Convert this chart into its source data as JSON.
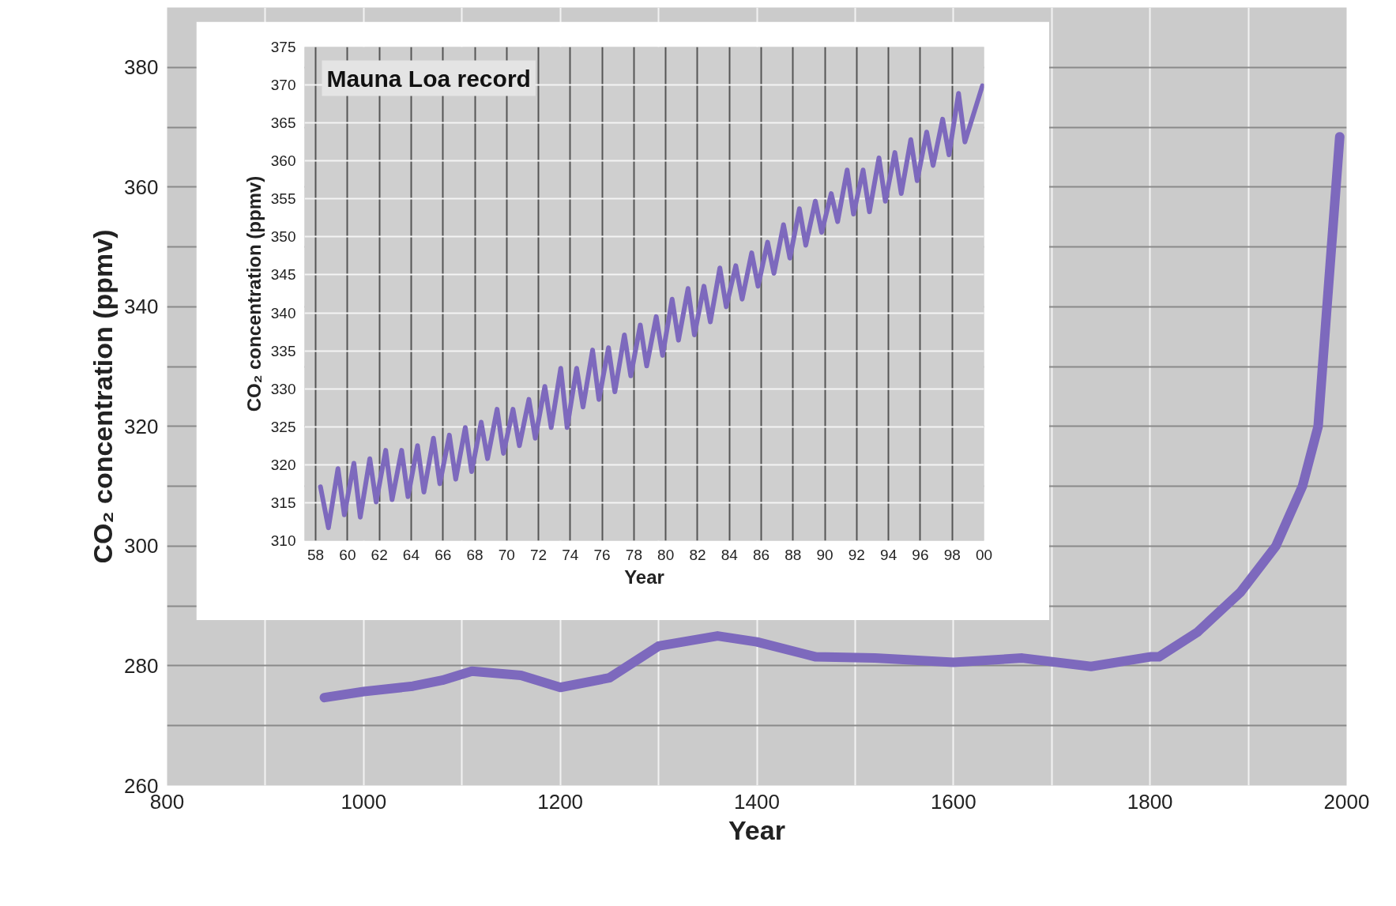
{
  "chart_data": [
    {
      "type": "line",
      "xlabel": "Year",
      "ylabel": "CO₂ concentration (ppmv)",
      "color": "#7d69bd",
      "x": [
        960,
        1000,
        1050,
        1080,
        1110,
        1160,
        1200,
        1250,
        1300,
        1360,
        1400,
        1460,
        1520,
        1600,
        1670,
        1740,
        1800,
        1809,
        1848,
        1892,
        1928,
        1955,
        1971,
        1980,
        1993
      ],
      "values": [
        274.7,
        275.7,
        276.6,
        277.6,
        279.1,
        278.4,
        276.4,
        278,
        283.3,
        285,
        284,
        281.5,
        281.3,
        280.6,
        281.3,
        279.9,
        281.5,
        281.5,
        285.6,
        292.3,
        300,
        310,
        320,
        340,
        368.4
      ],
      "xlim": [
        800,
        2000
      ],
      "ylim": [
        260,
        390
      ],
      "xticks": [
        800,
        {
          "value": 900,
          "label": null
        },
        1000,
        {
          "value": 1100,
          "label": null
        },
        1200,
        {
          "value": 1300,
          "label": null
        },
        1400,
        {
          "value": 1500,
          "label": null
        },
        1600,
        {
          "value": 1700,
          "label": null
        },
        1800,
        {
          "value": 1900,
          "label": null
        },
        2000
      ],
      "yticks": [
        260,
        {
          "value": 270,
          "label": null
        },
        280,
        {
          "value": 290,
          "label": null
        },
        300,
        {
          "value": 310,
          "label": null
        },
        320,
        {
          "value": 330,
          "label": null
        },
        340,
        {
          "value": 350,
          "label": null
        },
        360,
        {
          "value": 370,
          "label": null
        },
        380,
        {
          "value": 390,
          "label": null
        }
      ],
      "grid": true
    },
    {
      "type": "line",
      "title": "Mauna Loa record",
      "xlabel": "Year",
      "ylabel": "CO₂ concentration (ppmv)",
      "color": "#7d69bd",
      "x": [
        1958.3,
        1958.8,
        1959.4,
        1959.8,
        1960.4,
        1960.8,
        1961.4,
        1961.8,
        1962.4,
        1962.8,
        1963.4,
        1963.8,
        1964.4,
        1964.8,
        1965.4,
        1965.8,
        1966.4,
        1966.8,
        1967.4,
        1967.8,
        1968.4,
        1968.8,
        1969.4,
        1969.8,
        1970.4,
        1970.8,
        1971.4,
        1971.8,
        1972.4,
        1972.8,
        1973.4,
        1973.8,
        1974.4,
        1974.8,
        1975.4,
        1975.8,
        1976.4,
        1976.8,
        1977.4,
        1977.8,
        1978.4,
        1978.8,
        1979.4,
        1979.8,
        1980.4,
        1980.8,
        1981.4,
        1981.8,
        1982.4,
        1982.8,
        1983.4,
        1983.8,
        1984.4,
        1984.8,
        1985.4,
        1985.8,
        1986.4,
        1986.8,
        1987.4,
        1987.8,
        1988.4,
        1988.8,
        1989.4,
        1989.8,
        1990.4,
        1990.8,
        1991.4,
        1991.8,
        1992.4,
        1992.8,
        1993.4,
        1993.8,
        1994.4,
        1994.8,
        1995.4,
        1995.8,
        1996.4,
        1996.8,
        1997.4,
        1997.8,
        1998.4,
        1998.8,
        1999.9
      ],
      "values": [
        317.1,
        311.7,
        319.5,
        313.4,
        320.2,
        313.1,
        320.8,
        315.1,
        321.9,
        315.4,
        321.9,
        315.8,
        322.5,
        316.4,
        323.5,
        317.5,
        323.9,
        318.1,
        324.9,
        319.1,
        325.6,
        320.8,
        327.3,
        321.5,
        327.3,
        322.5,
        328.6,
        323.5,
        330.3,
        324.9,
        332.7,
        324.9,
        332.7,
        327.6,
        335.1,
        328.6,
        335.4,
        329.6,
        337.1,
        331.7,
        338.4,
        333.0,
        339.5,
        334.4,
        341.8,
        336.4,
        343.2,
        337.1,
        343.5,
        338.8,
        345.9,
        340.8,
        346.2,
        341.8,
        347.9,
        343.5,
        349.3,
        345.2,
        351.6,
        347.2,
        353.7,
        348.9,
        354.7,
        350.6,
        355.7,
        352.0,
        358.8,
        353.0,
        358.8,
        353.3,
        360.4,
        354.7,
        361.1,
        355.7,
        362.8,
        357.4,
        363.8,
        359.4,
        365.5,
        360.8,
        368.9,
        362.5,
        369.9
      ],
      "xlim": [
        1957.3,
        2000
      ],
      "ylim": [
        310,
        375
      ],
      "xticks": [
        {
          "value": 1958,
          "label": "58"
        },
        {
          "value": 1960,
          "label": "60"
        },
        {
          "value": 1962,
          "label": "62"
        },
        {
          "value": 1964,
          "label": "64"
        },
        {
          "value": 1966,
          "label": "66"
        },
        {
          "value": 1968,
          "label": "68"
        },
        {
          "value": 1970,
          "label": "70"
        },
        {
          "value": 1972,
          "label": "72"
        },
        {
          "value": 1974,
          "label": "74"
        },
        {
          "value": 1976,
          "label": "76"
        },
        {
          "value": 1978,
          "label": "78"
        },
        {
          "value": 1980,
          "label": "80"
        },
        {
          "value": 1982,
          "label": "82"
        },
        {
          "value": 1984,
          "label": "84"
        },
        {
          "value": 1986,
          "label": "86"
        },
        {
          "value": 1988,
          "label": "88"
        },
        {
          "value": 1990,
          "label": "90"
        },
        {
          "value": 1992,
          "label": "92"
        },
        {
          "value": 1994,
          "label": "94"
        },
        {
          "value": 1996,
          "label": "96"
        },
        {
          "value": 1998,
          "label": "98"
        },
        {
          "value": 2000,
          "label": "00"
        }
      ],
      "yticks": [
        310,
        315,
        320,
        325,
        330,
        335,
        340,
        345,
        350,
        355,
        360,
        365,
        370,
        375
      ],
      "grid": true
    }
  ]
}
